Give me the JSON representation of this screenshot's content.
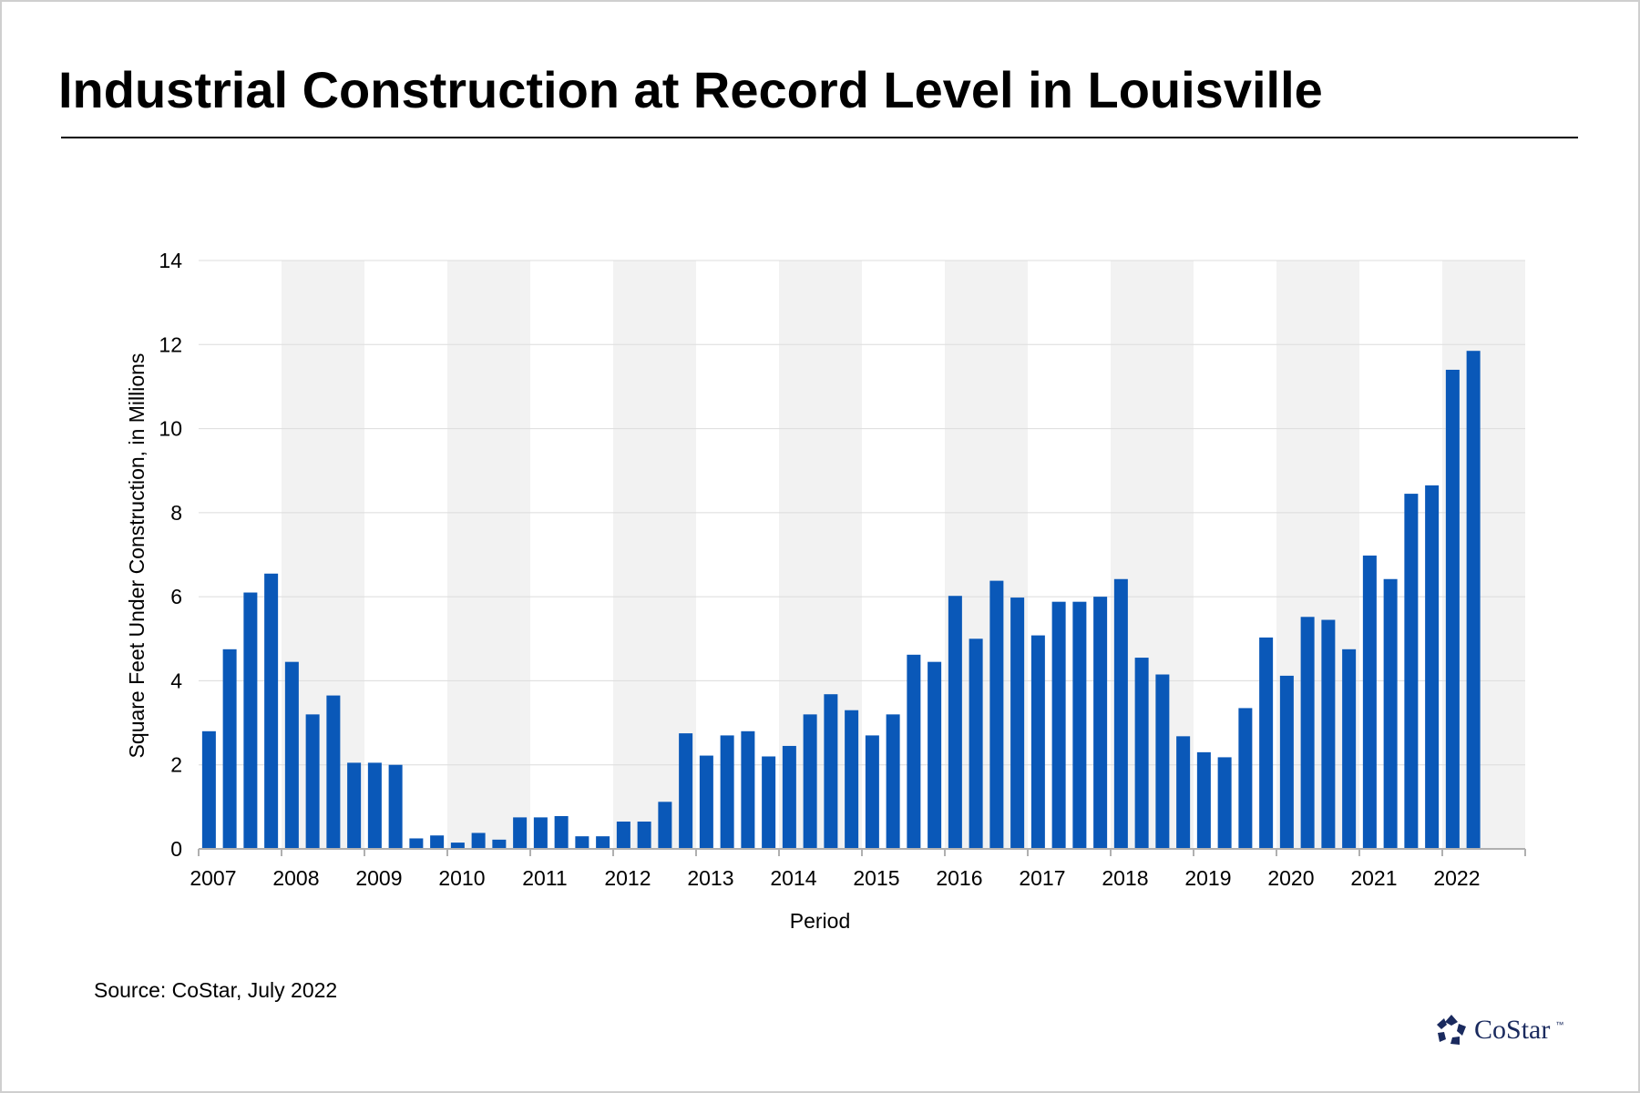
{
  "title": "Industrial Construction at Record Level in Louisville",
  "source": "Source: CoStar, July 2022",
  "logo": {
    "text": "CoStar",
    "tm": "™"
  },
  "colors": {
    "bar": "#0a58b8",
    "band": "#f2f2f2",
    "grid": "#dcdcdc"
  },
  "chart_data": {
    "type": "bar",
    "title": "Industrial Construction at Record Level in Louisville",
    "xlabel": "Period",
    "ylabel": "Square Feet Under Construction, in Millions",
    "ylim": [
      0,
      14
    ],
    "yticks": [
      0,
      2,
      4,
      6,
      8,
      10,
      12,
      14
    ],
    "grid": true,
    "alternating_year_bands": true,
    "x_tick_labels": [
      "2007",
      "2008",
      "2009",
      "2010",
      "2011",
      "2012",
      "2013",
      "2014",
      "2015",
      "2016",
      "2017",
      "2018",
      "2019",
      "2020",
      "2021",
      "2022"
    ],
    "periods_per_year": 4,
    "values": [
      2.8,
      4.75,
      6.1,
      6.55,
      4.45,
      3.2,
      3.65,
      2.05,
      2.05,
      2.0,
      0.25,
      0.32,
      0.15,
      0.38,
      0.22,
      0.75,
      0.75,
      0.78,
      0.3,
      0.3,
      0.65,
      0.65,
      1.12,
      2.75,
      2.22,
      2.7,
      2.8,
      2.2,
      2.45,
      3.2,
      3.68,
      3.3,
      2.7,
      3.2,
      4.62,
      4.45,
      6.02,
      5.0,
      6.38,
      5.98,
      5.08,
      5.88,
      5.88,
      6.0,
      6.42,
      4.55,
      4.15,
      2.68,
      2.3,
      2.18,
      3.35,
      5.03,
      4.12,
      5.52,
      5.45,
      4.75,
      6.98,
      6.42,
      8.45,
      8.65,
      11.4,
      11.85
    ]
  }
}
